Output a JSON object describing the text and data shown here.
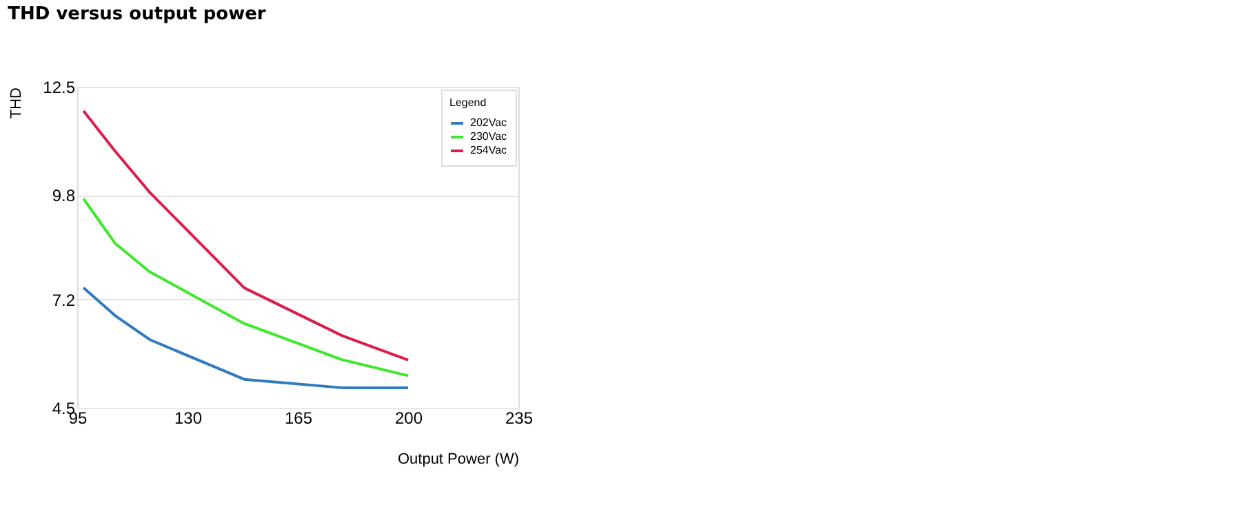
{
  "chart_data": {
    "type": "line",
    "title": "THD versus output power",
    "xlabel": "Output Power (W)",
    "ylabel": "THD",
    "legend_title": "Legend",
    "x": [
      97,
      107,
      118,
      148,
      179,
      200
    ],
    "series": [
      {
        "name": "202Vac",
        "color": "#2f7bbf",
        "values": [
          7.49,
          6.8,
          6.2,
          5.21,
          5.0,
          5.0
        ]
      },
      {
        "name": "230Vac",
        "color": "#3ee82a",
        "values": [
          9.71,
          8.6,
          7.89,
          6.6,
          5.7,
          5.3
        ]
      },
      {
        "name": "254Vac",
        "color": "#dc1f4a",
        "values": [
          11.9,
          10.9,
          9.87,
          7.49,
          6.3,
          5.69
        ]
      }
    ],
    "xlim": [
      95,
      235
    ],
    "xticks": [
      95,
      130,
      165,
      200,
      235
    ],
    "ylim": [
      4.5,
      12.5
    ],
    "yticks": [
      4.5,
      7.2,
      9.8,
      12.5
    ],
    "grid": "y",
    "legend": "top right",
    "marker": "none",
    "line_style": "solid"
  }
}
